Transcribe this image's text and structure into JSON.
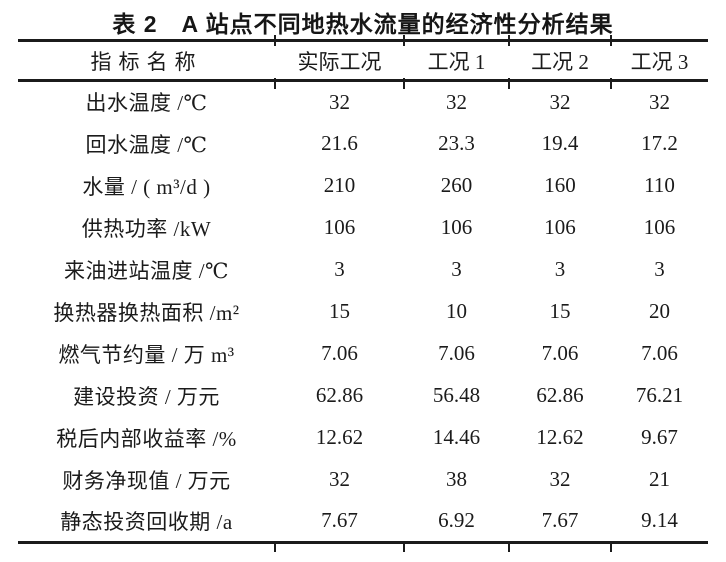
{
  "title": "表 2　A 站点不同地热水流量的经济性分析结果",
  "table": {
    "headers": [
      "指标名称",
      "实际工况",
      "工况 1",
      "工况 2",
      "工况 3"
    ],
    "rows": [
      {
        "label": "出水温度 /℃",
        "values": [
          "32",
          "32",
          "32",
          "32"
        ]
      },
      {
        "label": "回水温度 /℃",
        "values": [
          "21.6",
          "23.3",
          "19.4",
          "17.2"
        ]
      },
      {
        "label": "水量 / ( m³/d )",
        "values": [
          "210",
          "260",
          "160",
          "110"
        ]
      },
      {
        "label": "供热功率 /kW",
        "values": [
          "106",
          "106",
          "106",
          "106"
        ]
      },
      {
        "label": "来油进站温度 /℃",
        "values": [
          "3",
          "3",
          "3",
          "3"
        ]
      },
      {
        "label": "换热器换热面积 /m²",
        "values": [
          "15",
          "10",
          "15",
          "20"
        ]
      },
      {
        "label": "燃气节约量 / 万 m³",
        "values": [
          "7.06",
          "7.06",
          "7.06",
          "7.06"
        ]
      },
      {
        "label": "建设投资 / 万元",
        "values": [
          "62.86",
          "56.48",
          "62.86",
          "76.21"
        ]
      },
      {
        "label": "税后内部收益率 /%",
        "values": [
          "12.62",
          "14.46",
          "12.62",
          "9.67"
        ]
      },
      {
        "label": "财务净现值 / 万元",
        "values": [
          "32",
          "38",
          "32",
          "21"
        ]
      },
      {
        "label": "静态投资回收期 /a",
        "values": [
          "7.67",
          "6.92",
          "7.67",
          "9.14"
        ]
      }
    ]
  },
  "colors": {
    "text": "#1b1b1b",
    "background": "#ffffff"
  }
}
